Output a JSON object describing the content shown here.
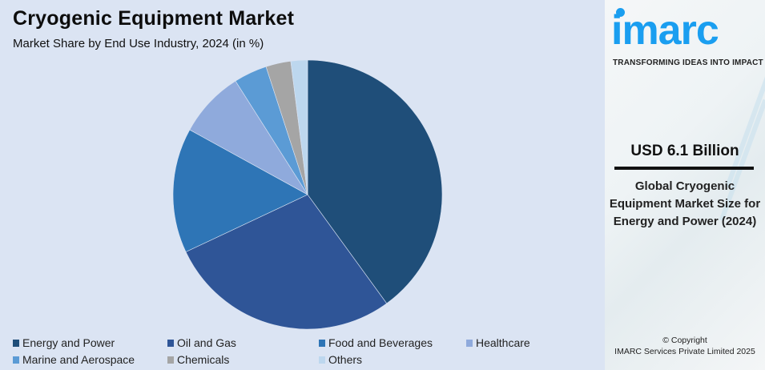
{
  "header": {
    "title": "Cryogenic Equipment Market",
    "subtitle": "Market Share by End Use Industry, 2024 (in %)"
  },
  "chart_data": {
    "type": "pie",
    "title": "Cryogenic Equipment Market",
    "subtitle": "Market Share by End Use Industry, 2024 (in %)",
    "categories": [
      "Energy and Power",
      "Oil and Gas",
      "Food and Beverages",
      "Healthcare",
      "Marine and Aerospace",
      "Chemicals",
      "Others"
    ],
    "values": [
      40,
      28,
      15,
      8,
      4,
      3,
      2
    ],
    "colors": [
      "#1f4e79",
      "#2f5597",
      "#2e75b6",
      "#8faadc",
      "#5b9bd5",
      "#a5a5a5",
      "#bdd7ee"
    ],
    "start_angle": "12 o'clock, clockwise",
    "legend_position": "bottom"
  },
  "legend": {
    "items": [
      {
        "label": "Energy and Power",
        "color": "#1f4e79"
      },
      {
        "label": "Oil and Gas",
        "color": "#2f5597"
      },
      {
        "label": "Food and Beverages",
        "color": "#2e75b6"
      },
      {
        "label": "Healthcare",
        "color": "#8faadc"
      },
      {
        "label": "Marine and Aerospace",
        "color": "#5b9bd5"
      },
      {
        "label": "Chemicals",
        "color": "#a5a5a5"
      },
      {
        "label": "Others",
        "color": "#bdd7ee"
      }
    ]
  },
  "sidebar": {
    "logo": "imarc",
    "tagline": "TRANSFORMING IDEAS INTO IMPACT",
    "market_value": "USD 6.1 Billion",
    "description": "Global Cryogenic Equipment Market Size for Energy and Power (2024)",
    "copyright_line1": "© Copyright",
    "copyright_line2": "IMARC Services Private Limited 2025",
    "brand_color": "#1a9ef0"
  }
}
